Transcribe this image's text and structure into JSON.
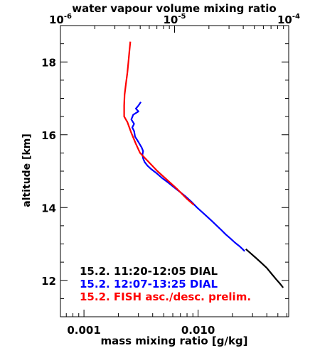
{
  "chart_data": {
    "type": "line",
    "title": "",
    "xlabel": "mass mixing ratio [g/kg]",
    "x2label": "water vapour volume mixing ratio",
    "ylabel": "altitude [km]",
    "xscale": "log",
    "xlim": [
      0.000622,
      0.0622
    ],
    "ylim": [
      11.0,
      19.0
    ],
    "x_ticks": [
      {
        "value": 0.001,
        "label": "0.001"
      },
      {
        "value": 0.01,
        "label": "0.010"
      }
    ],
    "x2_ticks": [
      {
        "value": 1e-06,
        "base": "10",
        "exp": "-6"
      },
      {
        "value": 1e-05,
        "base": "10",
        "exp": "-5"
      },
      {
        "value": 0.0001,
        "base": "10",
        "exp": "-4"
      }
    ],
    "y_ticks": [
      {
        "value": 12,
        "label": "12"
      },
      {
        "value": 14,
        "label": "14"
      },
      {
        "value": 16,
        "label": "16"
      },
      {
        "value": 18,
        "label": "18"
      }
    ],
    "legend_position": "bottom-left",
    "series": [
      {
        "name": "15.2. 11:20-12:05 DIAL",
        "color": "#000000",
        "points": [
          [
            0.0262,
            12.86
          ],
          [
            0.0287,
            12.75
          ],
          [
            0.032,
            12.62
          ],
          [
            0.0358,
            12.48
          ],
          [
            0.04,
            12.34
          ],
          [
            0.044,
            12.18
          ],
          [
            0.048,
            12.04
          ],
          [
            0.0525,
            11.9
          ],
          [
            0.0556,
            11.8
          ]
        ]
      },
      {
        "name": "15.2. 12:07-13:25 DIAL",
        "color": "#0000ff",
        "points": [
          [
            0.00315,
            16.9
          ],
          [
            0.003,
            16.8
          ],
          [
            0.00285,
            16.72
          ],
          [
            0.003,
            16.64
          ],
          [
            0.0027,
            16.55
          ],
          [
            0.0026,
            16.42
          ],
          [
            0.00275,
            16.3
          ],
          [
            0.00265,
            16.2
          ],
          [
            0.00275,
            16.1
          ],
          [
            0.0028,
            15.95
          ],
          [
            0.003,
            15.8
          ],
          [
            0.0032,
            15.65
          ],
          [
            0.0033,
            15.55
          ],
          [
            0.00325,
            15.45
          ],
          [
            0.0033,
            15.35
          ],
          [
            0.0034,
            15.25
          ],
          [
            0.0036,
            15.15
          ],
          [
            0.0039,
            15.05
          ],
          [
            0.0043,
            14.95
          ],
          [
            0.0048,
            14.82
          ],
          [
            0.0055,
            14.68
          ],
          [
            0.0062,
            14.55
          ],
          [
            0.007,
            14.42
          ],
          [
            0.0078,
            14.3
          ],
          [
            0.0088,
            14.15
          ],
          [
            0.0098,
            14.0
          ],
          [
            0.0108,
            13.88
          ],
          [
            0.012,
            13.75
          ],
          [
            0.0133,
            13.62
          ],
          [
            0.0146,
            13.5
          ],
          [
            0.016,
            13.38
          ],
          [
            0.0175,
            13.26
          ],
          [
            0.0192,
            13.15
          ],
          [
            0.021,
            13.04
          ],
          [
            0.023,
            12.94
          ],
          [
            0.0245,
            12.86
          ],
          [
            0.0256,
            12.8
          ]
        ]
      },
      {
        "name": "15.2. FISH asc./desc. prelim.",
        "color": "#ff0000",
        "points": [
          [
            0.00255,
            18.56
          ],
          [
            0.0025,
            18.3
          ],
          [
            0.00245,
            18.0
          ],
          [
            0.0024,
            17.7
          ],
          [
            0.00233,
            17.4
          ],
          [
            0.00227,
            17.1
          ],
          [
            0.00225,
            16.8
          ],
          [
            0.00225,
            16.5
          ],
          [
            0.0024,
            16.35
          ],
          [
            0.0026,
            16.05
          ],
          [
            0.00285,
            15.75
          ],
          [
            0.0031,
            15.5
          ],
          [
            0.0037,
            15.25
          ],
          [
            0.0044,
            15.0
          ],
          [
            0.0054,
            14.75
          ],
          [
            0.0066,
            14.5
          ],
          [
            0.0079,
            14.25
          ],
          [
            0.0092,
            14.07
          ]
        ]
      }
    ]
  }
}
